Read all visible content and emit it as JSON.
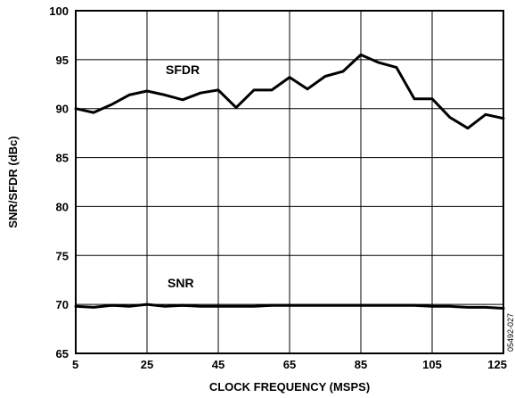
{
  "chart_data": {
    "type": "line",
    "title": "",
    "xlabel": "CLOCK FREQUENCY (MSPS)",
    "ylabel": "SNR/SFDR (dBc)",
    "xlim": [
      5,
      125
    ],
    "ylim": [
      65,
      100
    ],
    "xticks": [
      "5",
      "25",
      "45",
      "65",
      "85",
      "105",
      "125"
    ],
    "yticks": [
      "65",
      "70",
      "75",
      "80",
      "85",
      "90",
      "95",
      "100"
    ],
    "grid": true,
    "legend": "none",
    "series": [
      {
        "name": "SFDR",
        "x": [
          5,
          10,
          15,
          20,
          25,
          30,
          35,
          40,
          45,
          50,
          55,
          60,
          65,
          70,
          75,
          80,
          85,
          90,
          95,
          100,
          105,
          110,
          115,
          120,
          125
        ],
        "values": [
          90.0,
          89.6,
          90.4,
          91.4,
          91.8,
          91.4,
          90.9,
          91.6,
          91.9,
          90.1,
          91.9,
          91.9,
          93.2,
          92.0,
          93.3,
          93.8,
          95.5,
          94.7,
          94.2,
          91.0,
          91.0,
          89.1,
          88.0,
          89.4,
          89.0
        ]
      },
      {
        "name": "SNR",
        "x": [
          5,
          10,
          15,
          20,
          25,
          30,
          35,
          40,
          45,
          50,
          55,
          60,
          65,
          70,
          75,
          80,
          85,
          90,
          95,
          100,
          105,
          110,
          115,
          120,
          125
        ],
        "values": [
          69.8,
          69.7,
          69.9,
          69.8,
          70.0,
          69.8,
          69.9,
          69.8,
          69.8,
          69.8,
          69.8,
          69.9,
          69.9,
          69.9,
          69.9,
          69.9,
          69.9,
          69.9,
          69.9,
          69.9,
          69.8,
          69.8,
          69.7,
          69.7,
          69.6
        ]
      }
    ],
    "figure_code": "05492-027"
  }
}
